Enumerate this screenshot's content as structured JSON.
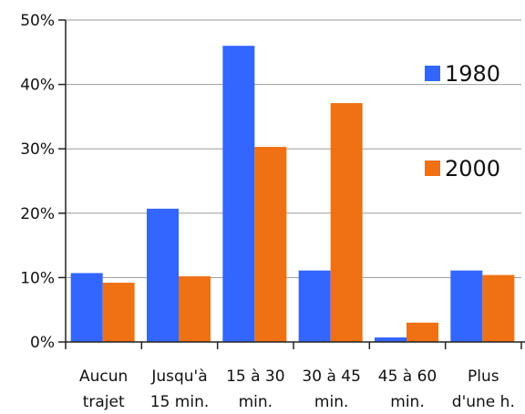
{
  "chart_data": {
    "type": "bar",
    "categories": [
      [
        "Aucun",
        "trajet"
      ],
      [
        "Jusqu'à",
        "15 min."
      ],
      [
        "15 à 30",
        "min."
      ],
      [
        "30 à 45",
        "min."
      ],
      [
        "45 à 60",
        "min."
      ],
      [
        "Plus",
        "d'une h."
      ]
    ],
    "series": [
      {
        "name": "1980",
        "color": "#3366ff",
        "values": [
          10.7,
          20.7,
          46.0,
          11.1,
          0.7,
          11.1
        ]
      },
      {
        "name": "2000",
        "color": "#f07014",
        "values": [
          9.2,
          10.2,
          30.3,
          37.1,
          3.0,
          10.4
        ]
      }
    ],
    "y_ticks": [
      "0%",
      "10%",
      "20%",
      "30%",
      "40%",
      "50%"
    ],
    "ylim": [
      0,
      50
    ],
    "grid": true,
    "legend": "right"
  }
}
